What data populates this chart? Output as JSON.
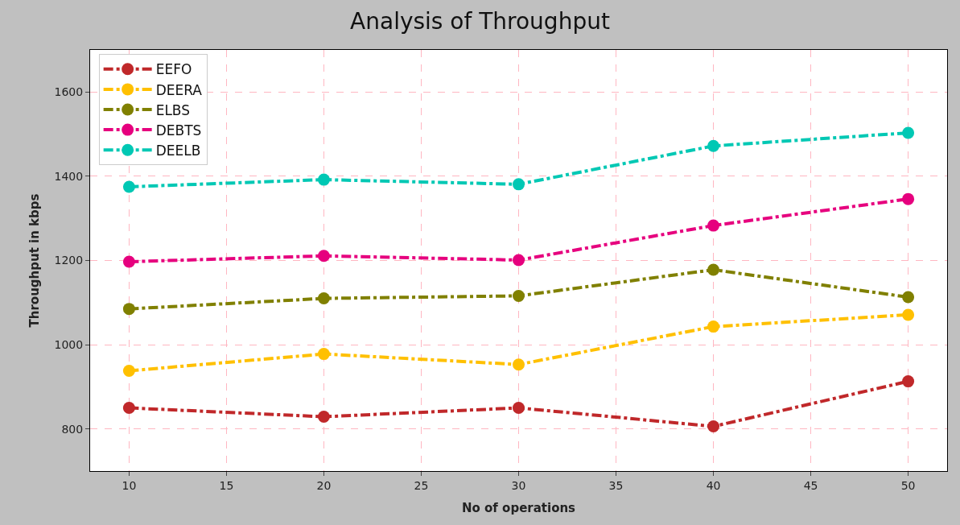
{
  "chart_data": {
    "type": "line",
    "title": "Analysis of Throughput",
    "xlabel": "No of operations",
    "ylabel": "Throughput in kbps",
    "x": [
      10,
      20,
      30,
      40,
      50
    ],
    "series": [
      {
        "name": "EEFO",
        "color": "#c0282a",
        "values": [
          850,
          829,
          850,
          806,
          913
        ]
      },
      {
        "name": "DEERA",
        "color": "#ffc000",
        "values": [
          938,
          978,
          953,
          1043,
          1071
        ]
      },
      {
        "name": "ELBS",
        "color": "#808000",
        "values": [
          1085,
          1110,
          1116,
          1178,
          1113
        ]
      },
      {
        "name": "DEBTS",
        "color": "#e6007e",
        "values": [
          1197,
          1211,
          1201,
          1283,
          1346
        ]
      },
      {
        "name": "DEELB",
        "color": "#00c8b4",
        "values": [
          1375,
          1392,
          1381,
          1472,
          1503
        ]
      }
    ],
    "xlim": [
      8,
      52
    ],
    "xticks": [
      10,
      15,
      20,
      25,
      30,
      35,
      40,
      45,
      50
    ],
    "ylim": [
      700,
      1700
    ],
    "yticks": [
      800,
      1000,
      1200,
      1400,
      1600
    ],
    "grid": true,
    "legend": "top left",
    "marker": "circle",
    "line_style": "dashdot"
  }
}
